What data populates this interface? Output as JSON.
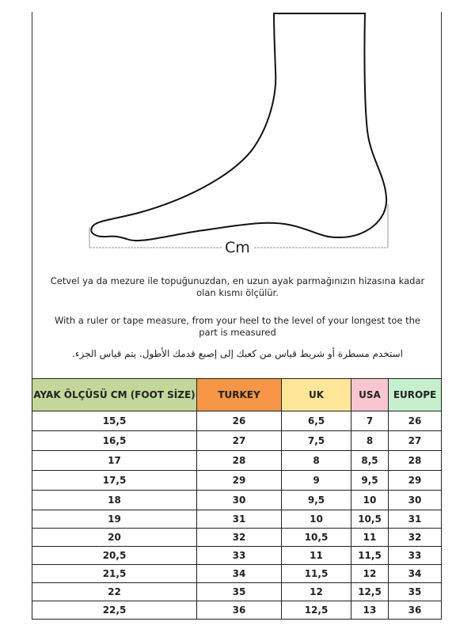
{
  "diagram": {
    "measure_label": "Cm"
  },
  "instructions": {
    "turkish": "Cetvel ya da mezure ile topuğunuzdan, en uzun ayak parmağınızın hizasına kadar olan kısmı ölçülür.",
    "english": "With a ruler or tape measure, from your heel to the level of your longest toe the part is measured",
    "arabic": "استخدم مسطرة أو شريط قياس من كعبك إلى إصبع قدمك الأطول. يتم قياس الجزء."
  },
  "table": {
    "headers": [
      "AYAK ÖLÇÜSÜ CM (FOOT SİZE)",
      "TURKEY",
      "UK",
      "USA",
      "EUROPE"
    ],
    "header_colors": [
      "#c4d79b",
      "#f79646",
      "#ffe699",
      "#f8c6d0",
      "#c6efce"
    ],
    "rows": [
      [
        "15,5",
        "26",
        "6,5",
        "7",
        "26"
      ],
      [
        "16,5",
        "27",
        "7,5",
        "8",
        "27"
      ],
      [
        "17",
        "28",
        "8",
        "8,5",
        "28"
      ],
      [
        "17,5",
        "29",
        "9",
        "9,5",
        "29"
      ],
      [
        "18",
        "30",
        "9,5",
        "10",
        "30"
      ],
      [
        "19",
        "31",
        "10",
        "10,5",
        "31"
      ],
      [
        "20",
        "32",
        "10,5",
        "11",
        "32"
      ],
      [
        "20,5",
        "33",
        "11",
        "11,5",
        "33"
      ],
      [
        "21,5",
        "34",
        "11,5",
        "12",
        "34"
      ],
      [
        "22",
        "35",
        "12",
        "12,5",
        "35"
      ],
      [
        "22,5",
        "36",
        "12,5",
        "13",
        "36"
      ]
    ]
  }
}
